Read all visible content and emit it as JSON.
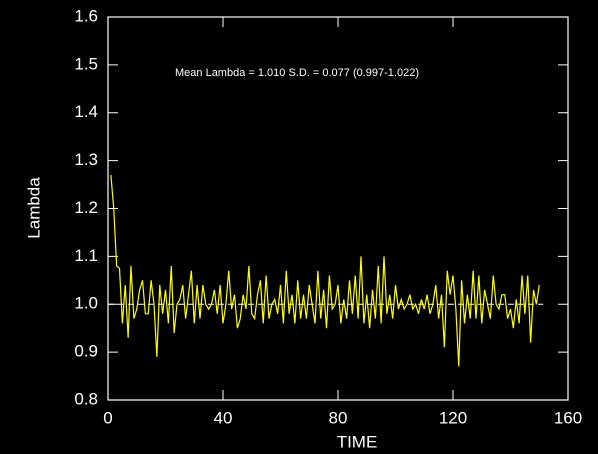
{
  "chart_data": {
    "type": "line",
    "xlabel": "TIME",
    "ylabel": "Lambda",
    "annotation": "Mean Lambda = 1.010 S.D. = 0.077 (0.997-1.022)",
    "xlim": [
      0,
      160
    ],
    "xticks": [
      0,
      40,
      80,
      120,
      160
    ],
    "ylim": [
      0.8,
      1.6
    ],
    "yticks": [
      0.8,
      0.9,
      {
        "value": 1,
        "label": "1.0"
      },
      1.1,
      1.2,
      1.3,
      1.4,
      1.5,
      1.6
    ],
    "reference_line": {
      "value": 1,
      "color": "#ffffff",
      "dashed": true
    },
    "x": [
      1,
      2,
      3,
      4,
      5,
      6,
      7,
      8,
      9,
      10,
      11,
      12,
      13,
      14,
      15,
      16,
      17,
      18,
      19,
      20,
      21,
      22,
      23,
      24,
      25,
      26,
      27,
      28,
      29,
      30,
      31,
      32,
      33,
      34,
      35,
      36,
      37,
      38,
      39,
      40,
      41,
      42,
      43,
      44,
      45,
      46,
      47,
      48,
      49,
      50,
      51,
      52,
      53,
      54,
      55,
      56,
      57,
      58,
      59,
      60,
      61,
      62,
      63,
      64,
      65,
      66,
      67,
      68,
      69,
      70,
      71,
      72,
      73,
      74,
      75,
      76,
      77,
      78,
      79,
      80,
      81,
      82,
      83,
      84,
      85,
      86,
      87,
      88,
      89,
      90,
      91,
      92,
      93,
      94,
      95,
      96,
      97,
      98,
      99,
      100,
      101,
      102,
      103,
      104,
      105,
      106,
      107,
      108,
      109,
      110,
      111,
      112,
      113,
      114,
      115,
      116,
      117,
      118,
      119,
      120,
      121,
      122,
      123,
      124,
      125,
      126,
      127,
      128,
      129,
      130,
      131,
      132,
      133,
      134,
      135,
      136,
      137,
      138,
      139,
      140,
      141,
      142,
      143,
      144,
      145,
      146,
      147,
      148,
      149,
      150
    ],
    "series": [
      {
        "name": "Lambda",
        "color": "#ffff00",
        "values": [
          1.27,
          1.2,
          1.08,
          1.075,
          0.96,
          1.04,
          0.93,
          1.08,
          0.97,
          0.99,
          1.03,
          1.05,
          0.98,
          0.98,
          1.05,
          1.0,
          0.89,
          1.04,
          0.98,
          1.03,
          0.96,
          1.08,
          0.94,
          1.0,
          1.01,
          1.04,
          0.97,
          1.02,
          1.07,
          0.96,
          1.04,
          0.97,
          1.04,
          1.0,
          0.99,
          1.0,
          1.03,
          0.98,
          1.04,
          0.96,
          1.0,
          1.07,
          0.99,
          1.02,
          0.95,
          0.97,
          1.02,
          0.99,
          1.08,
          0.98,
          0.97,
          1.02,
          1.05,
          0.96,
          1.06,
          0.97,
          1.0,
          1.01,
          0.98,
          1.04,
          0.96,
          1.07,
          0.98,
          1.02,
          0.96,
          1.05,
          0.97,
          1.02,
          0.97,
          1.04,
          1.0,
          0.96,
          1.07,
          0.97,
          1.03,
          0.95,
          1.06,
          0.99,
          1.0,
          1.04,
          0.96,
          1.01,
          0.97,
          1.05,
          0.98,
          1.06,
          0.97,
          1.1,
          0.96,
          1.02,
          0.95,
          1.03,
          0.97,
          1.08,
          0.96,
          1.1,
          0.98,
          1.02,
          0.97,
          1.04,
          0.99,
          1.01,
          0.99,
          1.0,
          1.02,
          0.99,
          1.0,
          0.98,
          1.01,
          0.99,
          1.02,
          0.98,
          1.0,
          1.04,
          0.97,
          1.02,
          0.91,
          1.07,
          1.02,
          1.06,
          0.99,
          0.87,
          1.05,
          0.96,
          1.02,
          0.97,
          1.07,
          0.97,
          1.06,
          0.96,
          1.03,
          1.0,
          0.97,
          1.06,
          1.0,
          0.99,
          1.02,
          1.02,
          0.97,
          0.99,
          0.95,
          1.01,
          0.96,
          1.06,
          0.98,
          1.06,
          0.92,
          1.03,
          1.0,
          1.04
        ]
      }
    ]
  }
}
